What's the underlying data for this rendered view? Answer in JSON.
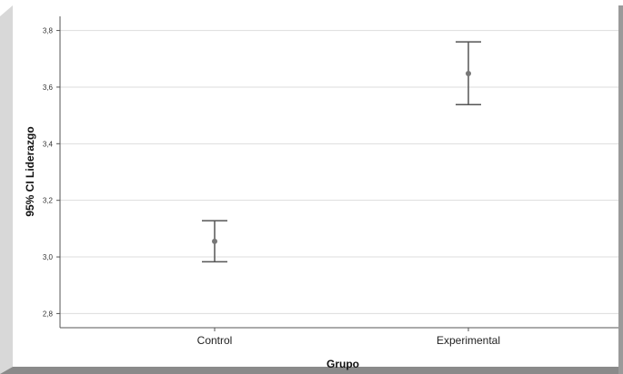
{
  "chart_data": {
    "type": "errorbar",
    "title": "",
    "xlabel": "Grupo",
    "ylabel": "95% CI Liderazgo",
    "categories": [
      "Control",
      "Experimental"
    ],
    "series": [
      {
        "means": [
          3.055,
          3.648
        ],
        "lower": [
          2.983,
          3.538
        ],
        "upper": [
          3.128,
          3.76
        ]
      }
    ],
    "ylim": [
      2.75,
      3.85
    ],
    "yticks": [
      2.8,
      3.0,
      3.2,
      3.4,
      3.6,
      3.8
    ],
    "ytick_labels": [
      "2,8",
      "3,0",
      "3,2",
      "3,4",
      "3,6",
      "3,8"
    ],
    "grid": true,
    "colors": {
      "errorbar": "#555555",
      "marker": "#777777",
      "grid": "#dddddd",
      "frame_shadow": "#8a8a8a"
    }
  }
}
